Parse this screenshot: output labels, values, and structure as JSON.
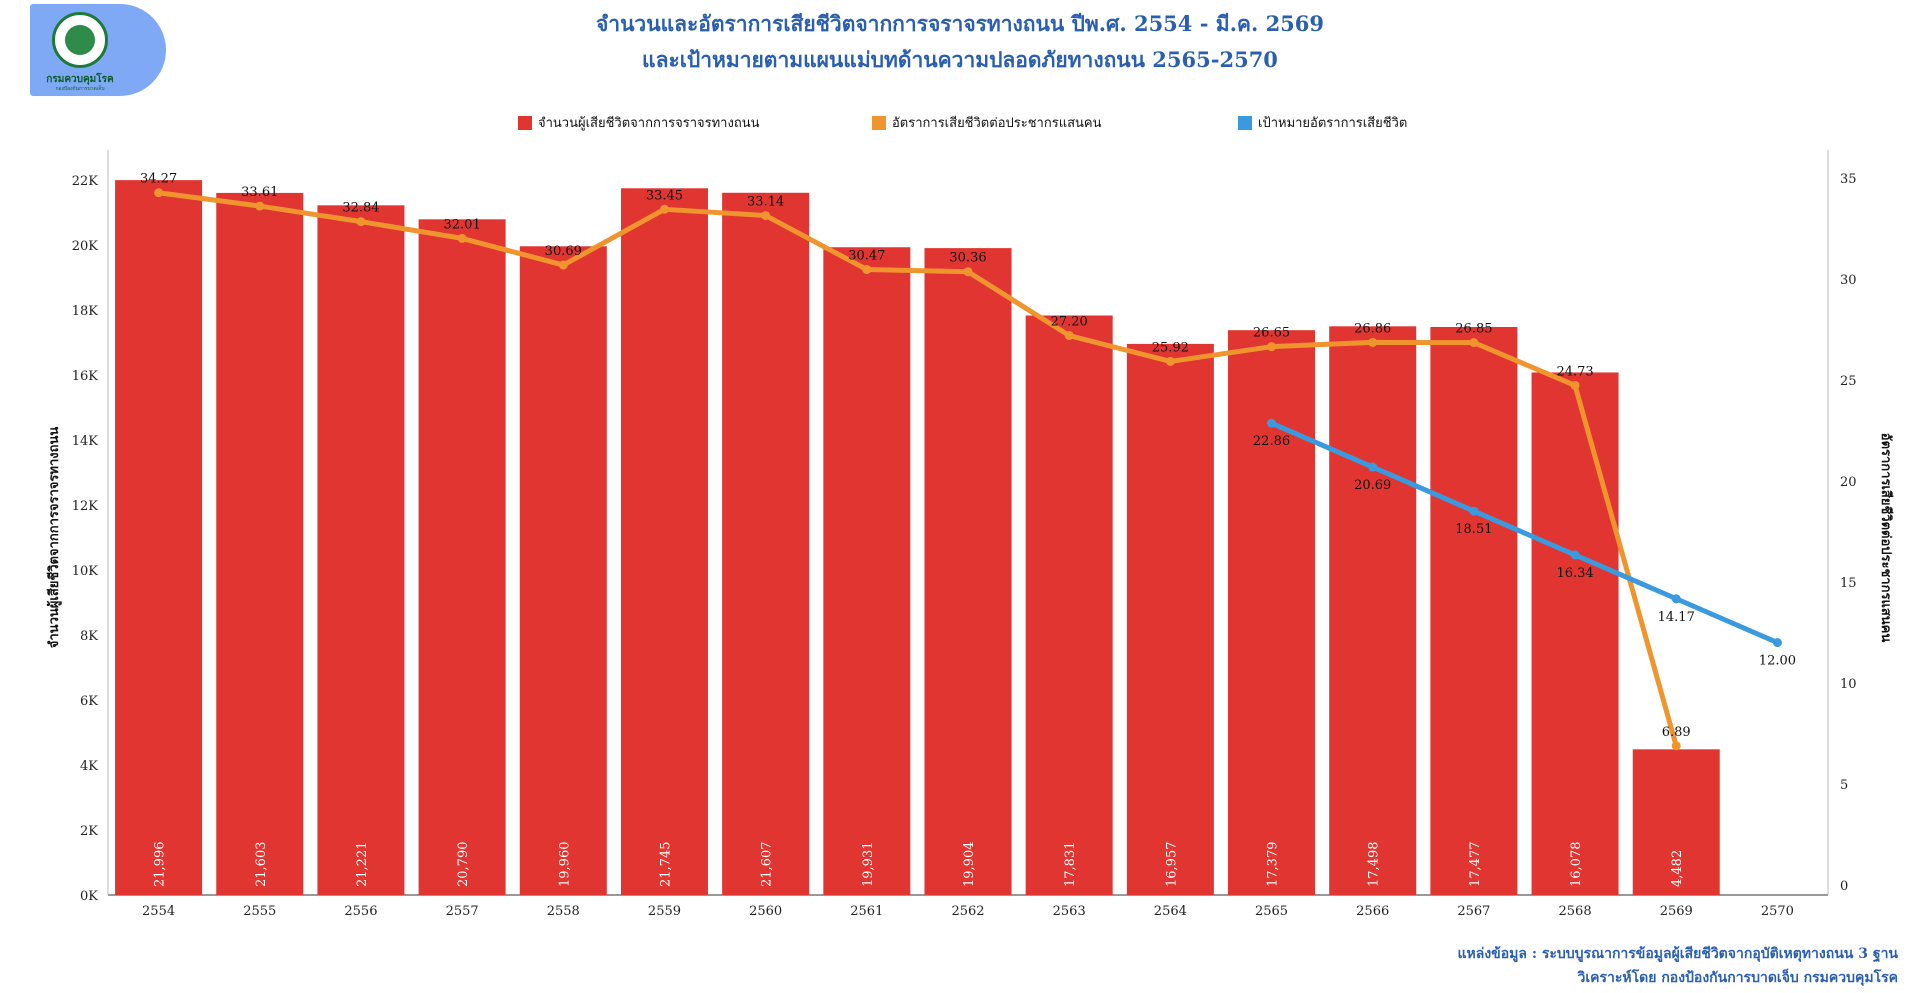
{
  "logo": {
    "name": "กรมควบคุมโรค",
    "subtitle": "กองป้องกันการบาดเจ็บ"
  },
  "title": {
    "line1": "จำนวนและอัตราการเสียชีวิตจากการจราจรทางถนน ปีพ.ศ. 2554 - มี.ค. 2569",
    "line2": "และเป้าหมายตามแผนแม่บทด้านความปลอดภัยทางถนน 2565-2570"
  },
  "legend": {
    "deaths": "จำนวนผู้เสียชีวิตจากการจราจรทางถนน",
    "rate": "อัตราการเสียชีวิตต่อประชากรแสนคน",
    "target": "เป้าหมายอัตราการเสียชีวิต"
  },
  "colors": {
    "bar": "#e03530",
    "rate_line": "#f0952e",
    "target_line": "#3a9ae0",
    "title": "#2a5fb0"
  },
  "chart_data": {
    "type": "bar",
    "categories": [
      "2554",
      "2555",
      "2556",
      "2557",
      "2558",
      "2559",
      "2560",
      "2561",
      "2562",
      "2563",
      "2564",
      "2565",
      "2566",
      "2567",
      "2568",
      "2569",
      "2570"
    ],
    "ylabel": "จำนวนผู้เสียชีวิตจากการจราจรทางถนน",
    "y2label": "อัตราการเสียชีวิตต่อประชากรแสนคน",
    "ylim": [
      0,
      22000
    ],
    "y2lim": [
      0,
      35
    ],
    "yticks": [
      "0K",
      "2K",
      "4K",
      "6K",
      "8K",
      "10K",
      "12K",
      "14K",
      "16K",
      "18K",
      "20K",
      "22K"
    ],
    "y2ticks": [
      "0",
      "5",
      "10",
      "15",
      "20",
      "25",
      "30",
      "35"
    ],
    "legend_position": "top",
    "grid": false,
    "series": [
      {
        "name": "จำนวนผู้เสียชีวิตจากการจราจรทางถนน",
        "kind": "bar",
        "axis": "left",
        "values": [
          21996,
          21603,
          21221,
          20790,
          19960,
          21745,
          21607,
          19931,
          19904,
          17831,
          16957,
          17379,
          17498,
          17477,
          16078,
          4482,
          null
        ],
        "labels": [
          "21,996",
          "21,603",
          "21,221",
          "20,790",
          "19,960",
          "21,745",
          "21,607",
          "19,931",
          "19,904",
          "17,831",
          "16,957",
          "17,379",
          "17,498",
          "17,477",
          "16,078",
          "4,482",
          ""
        ]
      },
      {
        "name": "อัตราการเสียชีวิตต่อประชากรแสนคน",
        "kind": "line",
        "axis": "right",
        "values": [
          34.27,
          33.61,
          32.84,
          32.01,
          30.69,
          33.45,
          33.14,
          30.47,
          30.36,
          27.2,
          25.92,
          26.65,
          26.86,
          26.85,
          24.73,
          6.89,
          null
        ],
        "labels": [
          "34.27",
          "33.61",
          "32.84",
          "32.01",
          "30.69",
          "33.45",
          "33.14",
          "30.47",
          "30.36",
          "27.20",
          "25.92",
          "26.65",
          "26.86",
          "26.85",
          "24.73",
          "6.89",
          ""
        ]
      },
      {
        "name": "เป้าหมายอัตราการเสียชีวิต",
        "kind": "line",
        "axis": "right",
        "values": [
          null,
          null,
          null,
          null,
          null,
          null,
          null,
          null,
          null,
          null,
          null,
          22.86,
          20.69,
          18.51,
          16.34,
          14.17,
          12.0
        ],
        "labels": [
          "",
          "",
          "",
          "",
          "",
          "",
          "",
          "",
          "",
          "",
          "",
          "22.86",
          "20.69",
          "18.51",
          "16.34",
          "14.17",
          "12.00"
        ]
      }
    ]
  },
  "source": {
    "line1": "แหล่งข้อมูล : ระบบบูรณาการข้อมูลผู้เสียชีวิตจากอุบัติเหตุทางถนน 3 ฐาน",
    "line2": "วิเคราะห์โดย กองป้องกันการบาดเจ็บ กรมควบคุมโรค"
  }
}
